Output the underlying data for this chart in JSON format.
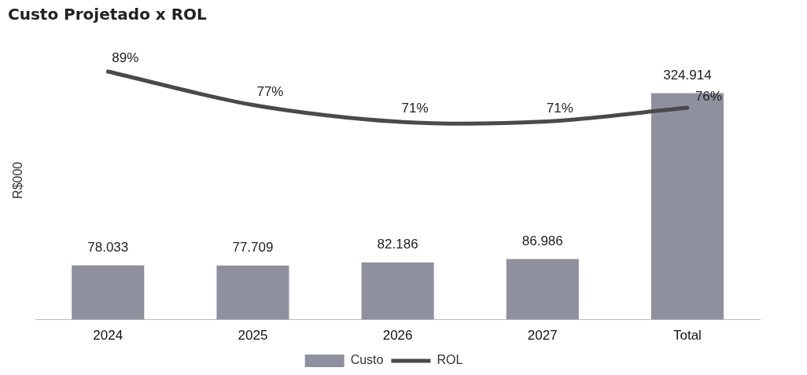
{
  "chart_data": {
    "type": "bar",
    "title": "Custo Projetado x ROL",
    "ylabel": "R$000",
    "categories": [
      "2024",
      "2025",
      "2026",
      "2027",
      "Total"
    ],
    "series": [
      {
        "name": "Custo",
        "color": "#8e909e",
        "values": [
          78033,
          77709,
          82186,
          86986,
          324914
        ],
        "value_labels": [
          "78.033",
          "77.709",
          "82.186",
          "86.986",
          "324.914"
        ]
      },
      {
        "name": "ROL",
        "type": "line",
        "axis": "y2",
        "color": "#4a4a4a",
        "values": [
          89,
          77,
          71,
          71,
          76
        ],
        "value_labels": [
          "89%",
          "77%",
          "71%",
          "71%",
          "76%"
        ]
      }
    ],
    "tick_labels": "x",
    "grid": false,
    "legend": "bottom",
    "marker": "none"
  }
}
